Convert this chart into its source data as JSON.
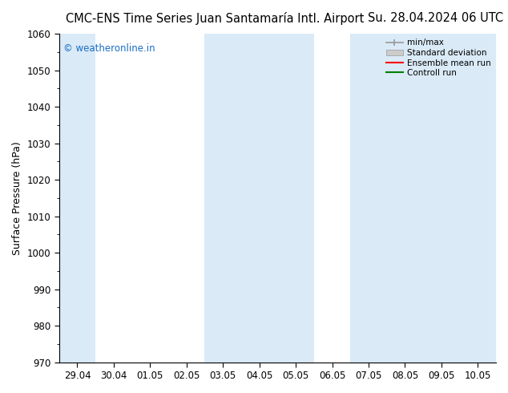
{
  "title_left": "CMC-ENS Time Series Juan Santamaría Intl. Airport",
  "title_right": "Su. 28.04.2024 06 UTC",
  "ylabel": "Surface Pressure (hPa)",
  "ylim": [
    970,
    1060
  ],
  "yticks": [
    970,
    980,
    990,
    1000,
    1010,
    1020,
    1030,
    1040,
    1050,
    1060
  ],
  "xtick_labels": [
    "29.04",
    "30.04",
    "01.05",
    "02.05",
    "03.05",
    "04.05",
    "05.05",
    "06.05",
    "07.05",
    "08.05",
    "09.05",
    "10.05"
  ],
  "xtick_positions": [
    0,
    1,
    2,
    3,
    4,
    5,
    6,
    7,
    8,
    9,
    10,
    11
  ],
  "xlim_start": -0.5,
  "xlim_end": 11.5,
  "shaded_bands": [
    {
      "xmin": -0.5,
      "xmax": 0.5
    },
    {
      "xmin": 3.5,
      "xmax": 6.5
    },
    {
      "xmin": 7.5,
      "xmax": 11.5
    }
  ],
  "shaded_color": "#daeaf7",
  "watermark_text": "© weatheronline.in",
  "watermark_color": "#1a6ec4",
  "legend_labels": [
    "min/max",
    "Standard deviation",
    "Ensemble mean run",
    "Controll run"
  ],
  "background_color": "#ffffff",
  "title_fontsize": 10.5,
  "label_fontsize": 9,
  "tick_fontsize": 8.5,
  "watermark_fontsize": 8.5
}
